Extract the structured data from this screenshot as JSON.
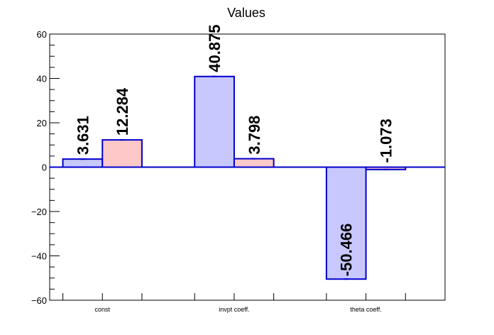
{
  "chart_data": {
    "type": "bar",
    "title": "Values",
    "categories": [
      "const",
      "invpt coeff.",
      "theta coeff."
    ],
    "series": [
      {
        "values": [
          3.631,
          40.875,
          -50.466
        ],
        "color": "#c8c8ff",
        "edge": "#0000cc"
      },
      {
        "values": [
          12.284,
          3.798,
          -1.073
        ],
        "color": "#ffc8c8",
        "edge": "#0000cc"
      }
    ],
    "value_labels": [
      [
        "3.631",
        "40.875",
        "-50.466"
      ],
      [
        "12.284",
        "3.798",
        "-1.073"
      ]
    ],
    "ylim": [
      -60,
      60
    ],
    "yticks": [
      -60,
      -40,
      -20,
      0,
      20,
      40,
      60
    ],
    "ytick_labels": [
      "−60",
      "−40",
      "−20",
      "0",
      "20",
      "40",
      "60"
    ],
    "xlabel": "",
    "ylabel": "",
    "grid": false,
    "legend": "none",
    "axis_color": "#000000",
    "zero_line_color": "#0000cc"
  }
}
